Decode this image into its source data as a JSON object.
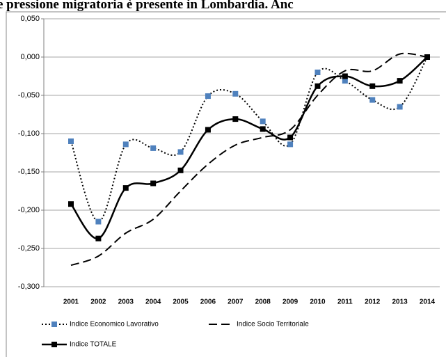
{
  "page_text": "e pressione migratoria è presente in Lombardia. Anc",
  "chart_data": {
    "type": "line",
    "categories": [
      "2001",
      "2002",
      "2003",
      "2004",
      "2005",
      "2006",
      "2007",
      "2008",
      "2009",
      "2010",
      "2011",
      "2012",
      "2013",
      "2014"
    ],
    "series": [
      {
        "name": "Indice Economico Lavorativo",
        "color": "#4f81bd",
        "line_color": "#000000",
        "style": "dotted",
        "marker": "square",
        "values": [
          -0.11,
          -0.215,
          -0.114,
          -0.119,
          -0.124,
          -0.051,
          -0.048,
          -0.084,
          -0.114,
          -0.02,
          -0.031,
          -0.056,
          -0.065,
          0.0
        ]
      },
      {
        "name": "Indice Socio Territoriale",
        "color": "#000000",
        "line_color": "#000000",
        "style": "dashed",
        "marker": "none",
        "values": [
          -0.272,
          -0.26,
          -0.23,
          -0.212,
          -0.175,
          -0.14,
          -0.115,
          -0.105,
          -0.095,
          -0.05,
          -0.018,
          -0.018,
          0.004,
          0.0
        ]
      },
      {
        "name": "Indice TOTALE",
        "color": "#000000",
        "line_color": "#000000",
        "style": "solid",
        "marker": "square",
        "values": [
          -0.192,
          -0.237,
          -0.171,
          -0.165,
          -0.148,
          -0.095,
          -0.081,
          -0.094,
          -0.105,
          -0.038,
          -0.025,
          -0.038,
          -0.031,
          0.0
        ]
      }
    ],
    "ylim": [
      -0.3,
      0.05
    ],
    "yticks": [
      {
        "value": -0.3,
        "label": "-0,300"
      },
      {
        "value": -0.25,
        "label": "-0,250"
      },
      {
        "value": -0.2,
        "label": "-0,200"
      },
      {
        "value": -0.15,
        "label": "-0,150"
      },
      {
        "value": -0.1,
        "label": "-0,100"
      },
      {
        "value": -0.05,
        "label": "-0,050"
      },
      {
        "value": 0.0,
        "label": "0,000"
      },
      {
        "value": 0.05,
        "label": "0,050"
      }
    ],
    "grid": true,
    "smooth": true,
    "legend": "bottom"
  }
}
